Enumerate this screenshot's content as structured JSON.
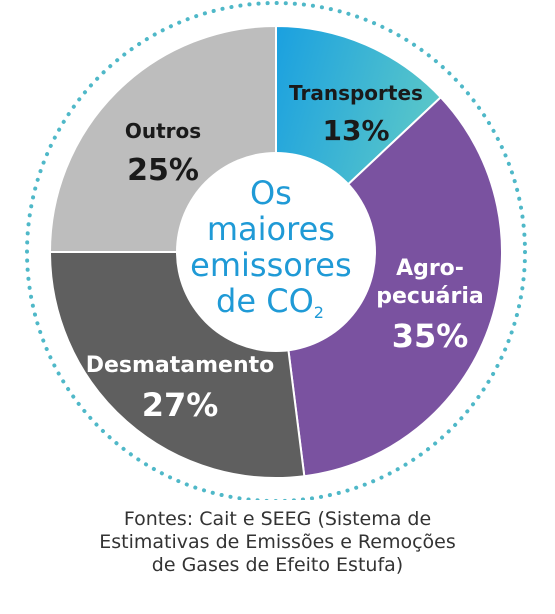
{
  "chart_data": {
    "type": "pie",
    "center_title": [
      "Os",
      "maiores",
      "emissores",
      "de CO",
      "2"
    ],
    "slices": [
      {
        "name": "Transportes",
        "label_lines": [
          "Transportes"
        ],
        "value": 13,
        "value_label": "13%",
        "color": "#1aa0e0",
        "color2": "#5cc8c8",
        "label_color": "#1a1a1a"
      },
      {
        "name": "Agropecuária",
        "label_lines": [
          "Agro-",
          "pecuária"
        ],
        "value": 35,
        "value_label": "35%",
        "color": "#7a52a0",
        "label_color": "#ffffff"
      },
      {
        "name": "Desmatamento",
        "label_lines": [
          "Desmatamento"
        ],
        "value": 27,
        "value_label": "27%",
        "color": "#5f5f5f",
        "label_color": "#ffffff"
      },
      {
        "name": "Outros",
        "label_lines": [
          "Outros"
        ],
        "value": 25,
        "value_label": "25%",
        "color": "#bdbdbd",
        "label_color": "#1a1a1a"
      }
    ],
    "start_angle_deg": 0,
    "direction": "clockwise",
    "ring_style": "dotted",
    "ring_color": "#4fb8c8"
  },
  "source": {
    "lines": [
      "Fontes: Cait e SEEG (Sistema de",
      "Estimativas de Emissões e Remoções",
      "de Gases de Efeito Estufa)"
    ]
  }
}
